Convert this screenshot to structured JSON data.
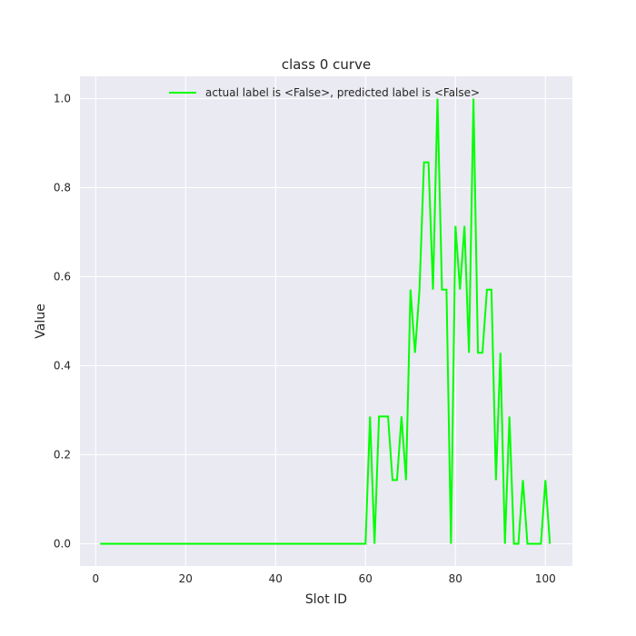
{
  "chart_data": {
    "type": "line",
    "title": "class 0 curve",
    "xlabel": "Slot ID",
    "ylabel": "Value",
    "xlim": [
      -3.5,
      106
    ],
    "ylim": [
      -0.05,
      1.05
    ],
    "xticks": [
      0,
      20,
      40,
      60,
      80,
      100
    ],
    "yticks": [
      0.0,
      0.2,
      0.4,
      0.6,
      0.8,
      1.0
    ],
    "ytick_labels": [
      "0.0",
      "0.2",
      "0.4",
      "0.6",
      "0.8",
      "1.0"
    ],
    "grid": true,
    "legend": "top-center",
    "series": [
      {
        "name": "actual label is <False>, predicted label is <False>",
        "color": "#00ff00",
        "x": [
          1,
          2,
          3,
          4,
          5,
          6,
          7,
          8,
          9,
          10,
          11,
          12,
          13,
          14,
          15,
          16,
          17,
          18,
          19,
          20,
          21,
          22,
          23,
          24,
          25,
          26,
          27,
          28,
          29,
          30,
          31,
          32,
          33,
          34,
          35,
          36,
          37,
          38,
          39,
          40,
          41,
          42,
          43,
          44,
          45,
          46,
          47,
          48,
          49,
          50,
          51,
          52,
          53,
          54,
          55,
          56,
          57,
          58,
          59,
          60,
          61,
          62,
          63,
          64,
          65,
          66,
          67,
          68,
          69,
          70,
          71,
          72,
          73,
          74,
          75,
          76,
          77,
          78,
          79,
          80,
          81,
          82,
          83,
          84,
          85,
          86,
          87,
          88,
          89,
          90,
          91,
          92,
          93,
          94,
          95,
          96,
          97,
          98,
          99,
          100,
          101
        ],
        "values": [
          0,
          0,
          0,
          0,
          0,
          0,
          0,
          0,
          0,
          0,
          0,
          0,
          0,
          0,
          0,
          0,
          0,
          0,
          0,
          0,
          0,
          0,
          0,
          0,
          0,
          0,
          0,
          0,
          0,
          0,
          0,
          0,
          0,
          0,
          0,
          0,
          0,
          0,
          0,
          0,
          0,
          0,
          0,
          0,
          0,
          0,
          0,
          0,
          0,
          0,
          0,
          0,
          0,
          0,
          0,
          0,
          0,
          0,
          0,
          0,
          0.286,
          0,
          0.286,
          0.286,
          0.286,
          0.143,
          0.143,
          0.286,
          0.143,
          0.571,
          0.429,
          0.571,
          0.857,
          0.857,
          0.571,
          1.0,
          0.571,
          0.571,
          0,
          0.714,
          0.571,
          0.714,
          0.429,
          1.0,
          0.429,
          0.429,
          0.571,
          0.571,
          0.143,
          0.429,
          0,
          0.286,
          0,
          0,
          0.143,
          0,
          0,
          0,
          0,
          0.143,
          0
        ]
      }
    ]
  }
}
